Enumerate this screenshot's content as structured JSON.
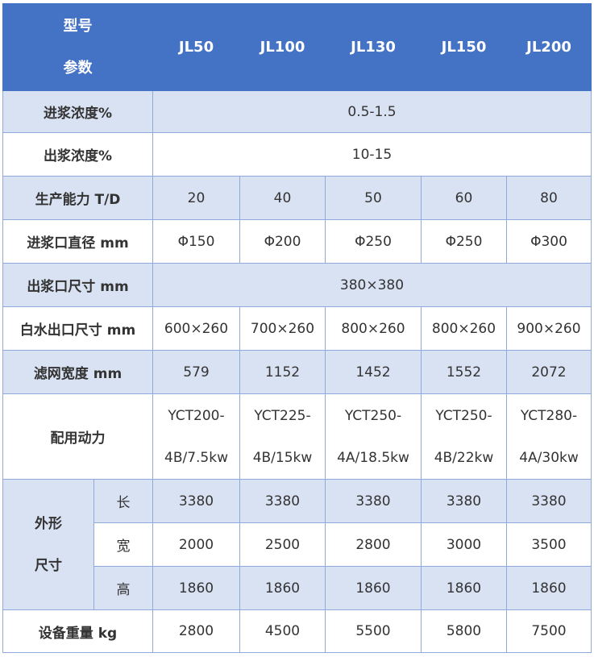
{
  "header": {
    "corner_top": "型号",
    "corner_bottom": "参数",
    "models": [
      "JL50",
      "JL100",
      "JL130",
      "JL150",
      "JL200"
    ]
  },
  "rows": {
    "inlet_conc": {
      "label": "进浆浓度%",
      "value": "0.5-1.5"
    },
    "outlet_conc": {
      "label": "出浆浓度%",
      "value": "10-15"
    },
    "capacity": {
      "label": "生产能力 T/D",
      "values": [
        "20",
        "40",
        "50",
        "60",
        "80"
      ]
    },
    "inlet_dia": {
      "label": "进浆口直径 mm",
      "values": [
        "Φ150",
        "Φ200",
        "Φ250",
        "Φ250",
        "Φ300"
      ]
    },
    "outlet_size": {
      "label": "出浆口尺寸 mm",
      "value": "380×380"
    },
    "white_water": {
      "label": "白水出口尺寸 mm",
      "values": [
        "600×260",
        "700×260",
        "800×260",
        "800×260",
        "900×260"
      ]
    },
    "screen_width": {
      "label": "滤网宽度 mm",
      "values": [
        "579",
        "1152",
        "1452",
        "1552",
        "2072"
      ]
    },
    "power": {
      "label": "配用动力",
      "top": [
        "YCT200-",
        "YCT225-",
        "YCT250-",
        "YCT250-",
        "YCT280-"
      ],
      "bottom": [
        "4B/7.5kw",
        "4B/15kw",
        "4A/18.5kw",
        "4B/22kw",
        "4A/30kw"
      ]
    },
    "dimensions": {
      "label_top": "外形",
      "label_bottom": "尺寸",
      "length": {
        "label": "长",
        "values": [
          "3380",
          "3380",
          "3380",
          "3380",
          "3380"
        ]
      },
      "width": {
        "label": "宽",
        "values": [
          "2000",
          "2500",
          "2800",
          "3000",
          "3500"
        ]
      },
      "height": {
        "label": "高",
        "values": [
          "1860",
          "1860",
          "1860",
          "1860",
          "1860"
        ]
      }
    },
    "weight": {
      "label": "设备重量 kg",
      "values": [
        "2800",
        "4500",
        "5500",
        "5800",
        "7500"
      ]
    }
  },
  "colors": {
    "header_bg": "#4472c4",
    "alt_row_bg": "#d9e2f3",
    "border": "#8eaadb"
  }
}
